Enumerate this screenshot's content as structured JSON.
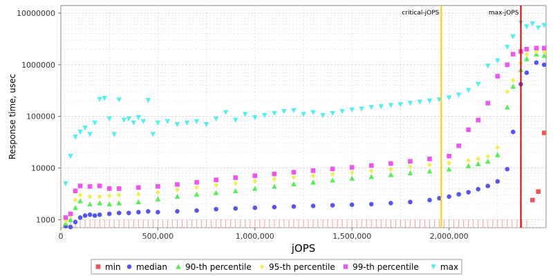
{
  "chart_data": {
    "type": "scatter",
    "xlabel": "jOPS",
    "ylabel": "Response time, usec",
    "xlim": [
      0,
      2500000
    ],
    "ylim": [
      700,
      14000000
    ],
    "yscale": "log",
    "grid": true,
    "legend_position": "bottom",
    "x_ticks": [
      0,
      500000,
      1000000,
      1500000,
      2000000
    ],
    "x_tick_labels": [
      "0",
      "500,000",
      "1,000,000",
      "1,500,000",
      "2,000,000"
    ],
    "y_ticks": [
      1000,
      10000,
      100000,
      1000000,
      10000000
    ],
    "y_tick_labels": [
      "1000",
      "10000",
      "100000",
      "1000000",
      "10000000"
    ],
    "reference_lines": [
      {
        "label": "critical-jOPS",
        "x": 1960000,
        "color": "#ffcc00"
      },
      {
        "label": "max-jOPS",
        "x": 2370000,
        "color": "#cc0000"
      }
    ],
    "series": [
      {
        "name": "min",
        "color": "#ee5555",
        "marker": "square",
        "x": [
          2430000,
          2460000,
          2490000
        ],
        "y": [
          2400,
          3500,
          48000
        ]
      },
      {
        "name": "median",
        "color": "#5555ee",
        "marker": "circle",
        "x": [
          25000,
          50000,
          75000,
          100000,
          125000,
          150000,
          175000,
          200000,
          250000,
          300000,
          350000,
          400000,
          450000,
          500000,
          600000,
          700000,
          800000,
          900000,
          1000000,
          1100000,
          1200000,
          1300000,
          1400000,
          1500000,
          1600000,
          1700000,
          1800000,
          1900000,
          1950000,
          2000000,
          2050000,
          2100000,
          2150000,
          2200000,
          2250000,
          2300000,
          2330000,
          2370000,
          2400000,
          2450000,
          2490000
        ],
        "y": [
          750,
          720,
          900,
          1100,
          1200,
          1250,
          1200,
          1250,
          1300,
          1350,
          1350,
          1400,
          1450,
          1400,
          1450,
          1500,
          1600,
          1650,
          1700,
          1750,
          1800,
          1850,
          1900,
          1950,
          2000,
          2100,
          2200,
          2400,
          2600,
          2800,
          3100,
          3400,
          3900,
          4500,
          5500,
          9500,
          50000,
          420000,
          700000,
          1100000,
          1000000
        ]
      },
      {
        "name": "90-th percentile",
        "color": "#55ee55",
        "marker": "triangle-up",
        "x": [
          25000,
          50000,
          75000,
          100000,
          150000,
          200000,
          250000,
          300000,
          400000,
          500000,
          600000,
          700000,
          800000,
          900000,
          1000000,
          1100000,
          1200000,
          1300000,
          1400000,
          1500000,
          1600000,
          1700000,
          1800000,
          1900000,
          2000000,
          2100000,
          2150000,
          2200000,
          2250000,
          2300000,
          2330000,
          2370000,
          2400000,
          2450000,
          2490000
        ],
        "y": [
          850,
          1000,
          1700,
          2300,
          2000,
          2100,
          2000,
          2100,
          2200,
          2500,
          2800,
          3100,
          3300,
          3600,
          4000,
          4400,
          4900,
          5300,
          5800,
          6300,
          6800,
          7400,
          8000,
          8700,
          9500,
          11000,
          12000,
          13500,
          18000,
          150000,
          380000,
          800000,
          1300000,
          1600000,
          1500000
        ]
      },
      {
        "name": "95-th percentile",
        "color": "#eeee55",
        "marker": "diamond",
        "x": [
          25000,
          50000,
          75000,
          100000,
          150000,
          200000,
          250000,
          300000,
          400000,
          500000,
          600000,
          700000,
          800000,
          900000,
          1000000,
          1100000,
          1200000,
          1300000,
          1400000,
          1500000,
          1600000,
          1700000,
          1800000,
          1900000,
          2000000,
          2100000,
          2150000,
          2200000,
          2250000,
          2300000,
          2330000,
          2370000,
          2400000,
          2450000,
          2490000
        ],
        "y": [
          950,
          1200,
          2400,
          3000,
          2800,
          2800,
          2900,
          3000,
          3100,
          3400,
          3800,
          4200,
          4700,
          5100,
          5600,
          6100,
          6600,
          7100,
          7600,
          8200,
          8800,
          9500,
          10500,
          11500,
          12500,
          14000,
          15000,
          17000,
          25000,
          300000,
          500000,
          1100000,
          1600000,
          1800000,
          1800000
        ]
      },
      {
        "name": "99-th percentile",
        "color": "#ee55ee",
        "marker": "square",
        "x": [
          25000,
          50000,
          75000,
          100000,
          150000,
          200000,
          250000,
          300000,
          400000,
          500000,
          600000,
          700000,
          800000,
          900000,
          1000000,
          1100000,
          1200000,
          1300000,
          1400000,
          1500000,
          1600000,
          1700000,
          1800000,
          1900000,
          2000000,
          2050000,
          2100000,
          2150000,
          2200000,
          2250000,
          2300000,
          2330000,
          2370000,
          2400000,
          2450000,
          2490000
        ],
        "y": [
          1100,
          1300,
          3600,
          4500,
          4400,
          4500,
          4000,
          4000,
          4200,
          4400,
          4800,
          5300,
          5900,
          6500,
          7100,
          7700,
          8300,
          8900,
          9600,
          10300,
          11200,
          12200,
          13500,
          15000,
          17000,
          27000,
          55000,
          85000,
          180000,
          600000,
          1000000,
          1600000,
          1800000,
          2000000,
          2100000,
          2100000
        ]
      },
      {
        "name": "max",
        "color": "#55eeee",
        "marker": "triangle-down",
        "x": [
          25000,
          50000,
          75000,
          100000,
          125000,
          150000,
          175000,
          200000,
          225000,
          250000,
          275000,
          300000,
          325000,
          350000,
          375000,
          400000,
          425000,
          450000,
          475000,
          500000,
          550000,
          600000,
          650000,
          700000,
          750000,
          800000,
          850000,
          900000,
          950000,
          1000000,
          1050000,
          1100000,
          1150000,
          1200000,
          1250000,
          1300000,
          1350000,
          1400000,
          1450000,
          1500000,
          1550000,
          1600000,
          1650000,
          1700000,
          1750000,
          1800000,
          1850000,
          1900000,
          1950000,
          2000000,
          2050000,
          2100000,
          2150000,
          2200000,
          2250000,
          2300000,
          2330000,
          2370000,
          2400000,
          2430000,
          2460000,
          2490000
        ],
        "y": [
          5000,
          17000,
          40000,
          50000,
          60000,
          45000,
          75000,
          215000,
          225000,
          90000,
          45000,
          210000,
          85000,
          90000,
          75000,
          95000,
          80000,
          205000,
          45000,
          75000,
          80000,
          70000,
          75000,
          80000,
          70000,
          90000,
          120000,
          85000,
          110000,
          95000,
          105000,
          115000,
          125000,
          130000,
          110000,
          120000,
          105000,
          115000,
          125000,
          135000,
          140000,
          150000,
          155000,
          165000,
          170000,
          180000,
          190000,
          200000,
          210000,
          230000,
          260000,
          320000,
          420000,
          950000,
          1200000,
          2200000,
          3500000,
          6500000,
          5500000,
          6200000,
          5200000,
          5800000
        ]
      }
    ]
  }
}
